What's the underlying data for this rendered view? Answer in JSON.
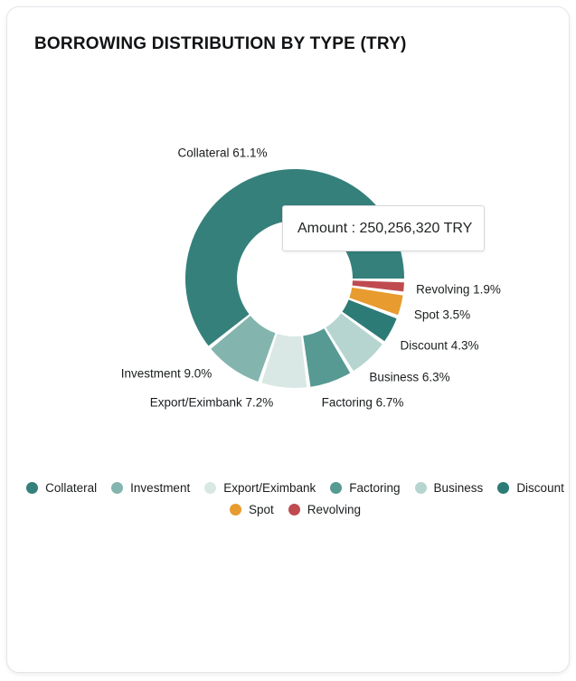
{
  "title": "BORROWING DISTRIBUTION BY TYPE (TRY)",
  "tooltip": {
    "label": "Amount",
    "value": "250,256,320 TRY",
    "text": "Amount : 250,256,320 TRY"
  },
  "chart_data": {
    "type": "pie",
    "subtype": "donut",
    "title": "BORROWING DISTRIBUTION BY TYPE (TRY)",
    "unit": "percent",
    "direction": "counterclockwise",
    "start_angle_cw_from_top": 91,
    "inner_radius_ratio": 0.53,
    "legend_position": "bottom",
    "segments": [
      {
        "name": "Collateral",
        "value": 61.1,
        "percent_label": "61.1%",
        "color": "#35807B"
      },
      {
        "name": "Investment",
        "value": 9.0,
        "percent_label": "9.0%",
        "color": "#83B5AE"
      },
      {
        "name": "Export/Eximbank",
        "value": 7.2,
        "percent_label": "7.2%",
        "color": "#D9E8E4"
      },
      {
        "name": "Factoring",
        "value": 6.7,
        "percent_label": "6.7%",
        "color": "#579A93"
      },
      {
        "name": "Business",
        "value": 6.3,
        "percent_label": "6.3%",
        "color": "#B7D5D0"
      },
      {
        "name": "Discount",
        "value": 4.3,
        "percent_label": "4.3%",
        "color": "#2D7B76"
      },
      {
        "name": "Spot",
        "value": 3.5,
        "percent_label": "3.5%",
        "color": "#E89B2E"
      },
      {
        "name": "Revolving",
        "value": 1.9,
        "percent_label": "1.9%",
        "color": "#BF4B51"
      }
    ],
    "tooltip": {
      "label": "Amount",
      "value": "250,256,320 TRY"
    }
  }
}
